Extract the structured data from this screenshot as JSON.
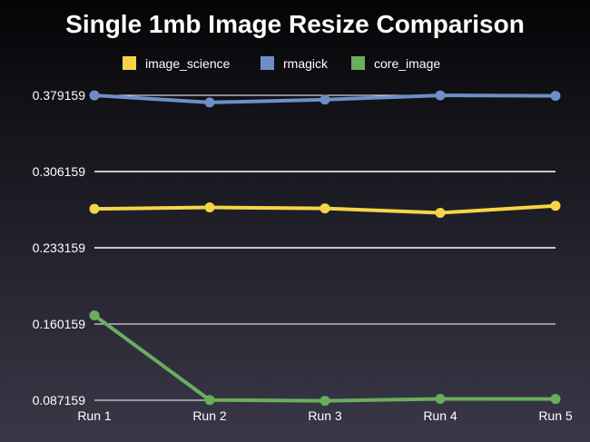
{
  "chart_data": {
    "type": "line",
    "title": "Single 1mb Image Resize Comparison",
    "xlabel": "",
    "ylabel": "",
    "categories": [
      "Run 1",
      "Run 2",
      "Run 3",
      "Run 4",
      "Run 5"
    ],
    "y_ticks": [
      0.087159,
      0.160159,
      0.233159,
      0.306159,
      0.379159
    ],
    "y_tick_labels": [
      "0.087159",
      "0.160159",
      "0.233159",
      "0.306159",
      "0.379159"
    ],
    "ylim": [
      0.087159,
      0.379159
    ],
    "grid": true,
    "legend_position": "top",
    "series": [
      {
        "name": "image_science",
        "color": "#f5d547",
        "values": [
          0.2704,
          0.2718,
          0.2709,
          0.2666,
          0.2734
        ]
      },
      {
        "name": "rmagick",
        "color": "#6e8fc6",
        "values": [
          0.3791,
          0.3723,
          0.375,
          0.3791,
          0.3786
        ]
      },
      {
        "name": "core_image",
        "color": "#6aad5e",
        "values": [
          0.1684,
          0.0874,
          0.0866,
          0.0885,
          0.0884
        ]
      }
    ]
  }
}
